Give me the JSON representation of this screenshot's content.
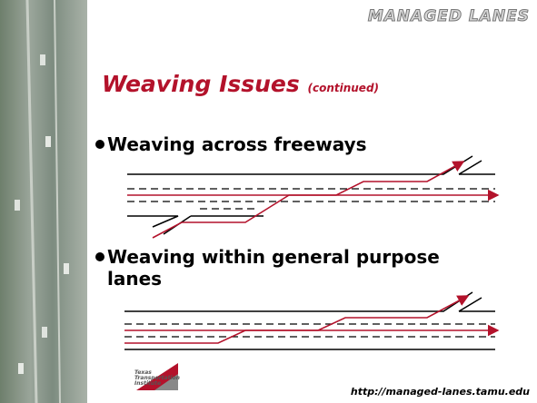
{
  "header": {
    "brand": "MANAGED LANES"
  },
  "title": {
    "main": "Weaving Issues",
    "sub": "(continued)"
  },
  "bullets": [
    "Weaving across freeways",
    "Weaving within general purpose lanes"
  ],
  "logo": {
    "lines": [
      "Texas",
      "Transportation",
      "Institute"
    ]
  },
  "footer": {
    "url": "http://managed-lanes.tamu.edu"
  }
}
